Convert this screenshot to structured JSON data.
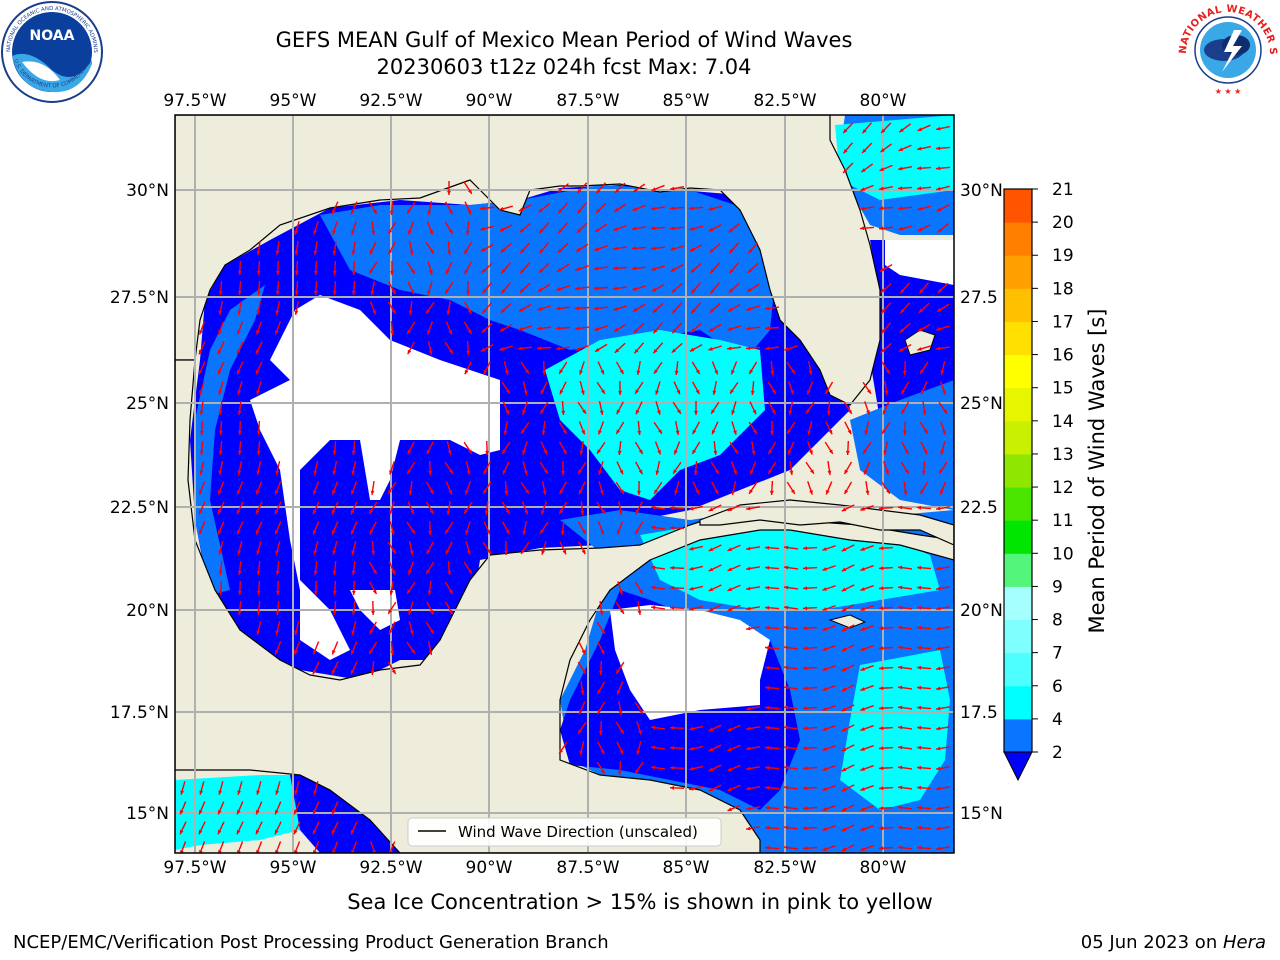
{
  "header": {
    "title_line1": "GEFS MEAN Gulf of Mexico Mean Period of Wind Waves",
    "title_line2": "20230603 t12z 024h fcst   Max: 7.04"
  },
  "logos": {
    "noaa_text": "NOAA",
    "noaa_ring_text": "NATIONAL OCEANIC AND ATMOSPHERIC ADMINISTRATION",
    "noaa_ring_text_bottom": "U.S. DEPARTMENT OF COMMERCE",
    "nws_ring_text": "NATIONAL WEATHER SERVICE"
  },
  "map": {
    "lon_labels": [
      "97.5°W",
      "95°W",
      "92.5°W",
      "90°W",
      "87.5°W",
      "85°W",
      "82.5°W",
      "80°W"
    ],
    "lat_labels_left": [
      "30°N",
      "27.5°N",
      "25°N",
      "22.5°N",
      "20°N",
      "17.5°N",
      "15°N"
    ],
    "lat_labels_right": [
      "30°N",
      "27.5",
      "25°N",
      "22.5",
      "20°N",
      "17.5",
      "15°N"
    ],
    "extent": {
      "lon_min": -98,
      "lon_max": -78.2,
      "lat_min": 14,
      "lat_max": 31.8
    },
    "legend_label": "Wind Wave Direction (unscaled)",
    "colors": {
      "land": "#eeeddb",
      "ocean_low": "#0000ff",
      "ocean_2_4": "#0a75ff",
      "ocean_4_6": "#00ffff",
      "ocean_6_8": "#4dffff",
      "arrow": "#ff0000",
      "grid": "#b0b0b0"
    }
  },
  "colorbar": {
    "label": "Mean Period of Wind Waves [s]",
    "ticks": [
      "2",
      "4",
      "6",
      "7",
      "8",
      "9",
      "10",
      "11",
      "12",
      "13",
      "14",
      "15",
      "16",
      "17",
      "18",
      "19",
      "20",
      "21"
    ],
    "colors": [
      "#0a75ff",
      "#00ffff",
      "#4dffff",
      "#80ffff",
      "#a6ffff",
      "#53f57a",
      "#00e600",
      "#4be600",
      "#8fe600",
      "#c8f000",
      "#e6f500",
      "#ffff00",
      "#ffe000",
      "#ffc000",
      "#ffa000",
      "#ff8000",
      "#ff5500",
      "#ff2a00",
      "#ff0000"
    ]
  },
  "footer": {
    "note": "Sea Ice Concentration > 15% is shown in pink to yellow",
    "left": "NCEP/EMC/Verification Post Processing Product Generation Branch",
    "right_date": "05 Jun 2023 on ",
    "right_host": "Hera"
  }
}
